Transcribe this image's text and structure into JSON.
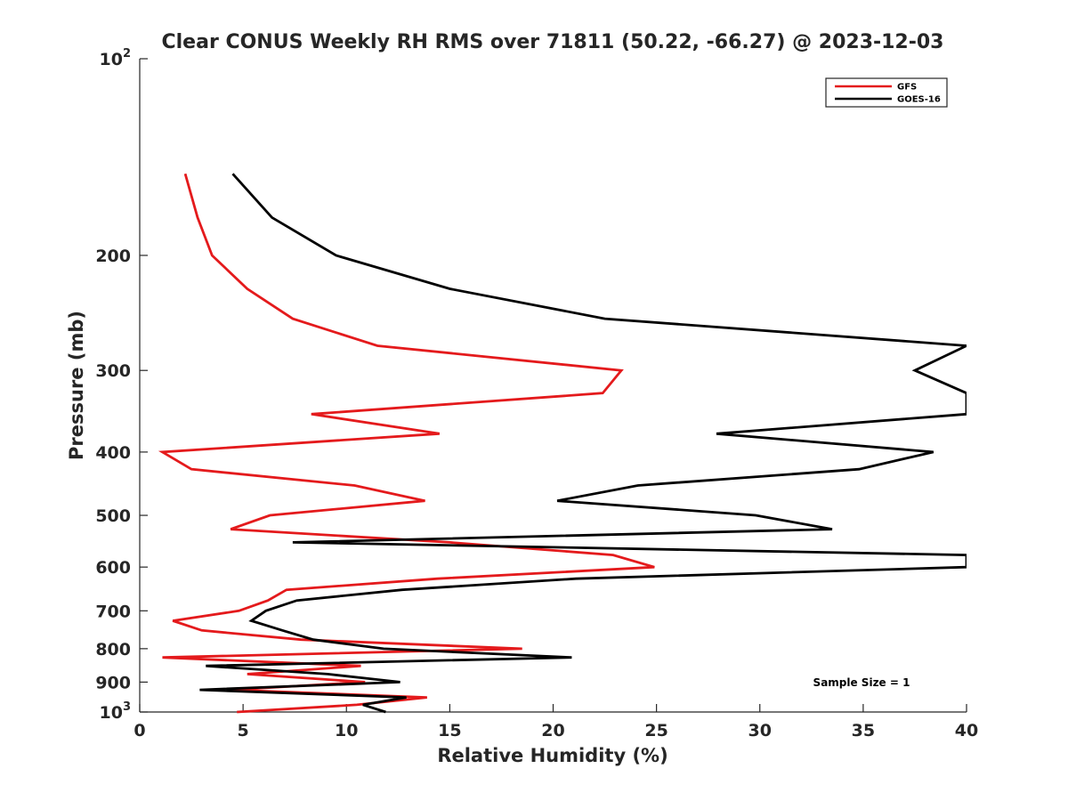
{
  "chart_data": {
    "type": "line",
    "title": "Clear CONUS Weekly RH RMS over 71811 (50.22, -66.27) @ 2023-12-03",
    "xlabel": "Relative Humidity (%)",
    "ylabel": "Pressure (mb)",
    "xlim": [
      0,
      40
    ],
    "ylim": [
      100,
      1000
    ],
    "y_scale": "log",
    "y_reversed": true,
    "x_ticks": [
      0,
      5,
      10,
      15,
      20,
      25,
      30,
      35,
      40
    ],
    "y_ticks": [
      {
        "value": 100,
        "label": "10",
        "sup": "2"
      },
      {
        "value": 200,
        "label": "200"
      },
      {
        "value": 300,
        "label": "300"
      },
      {
        "value": 400,
        "label": "400"
      },
      {
        "value": 500,
        "label": "500"
      },
      {
        "value": 600,
        "label": "600"
      },
      {
        "value": 700,
        "label": "700"
      },
      {
        "value": 800,
        "label": "800"
      },
      {
        "value": 900,
        "label": "900"
      },
      {
        "value": 1000,
        "label": "10",
        "sup": "3"
      }
    ],
    "legend_position": "top-right",
    "annotation": "Sample Size = 1",
    "series": [
      {
        "name": "GFS",
        "color": "#e41a1c",
        "points": [
          {
            "x": 2.2,
            "p": 150
          },
          {
            "x": 2.8,
            "p": 175
          },
          {
            "x": 3.5,
            "p": 200
          },
          {
            "x": 5.2,
            "p": 225
          },
          {
            "x": 7.4,
            "p": 250
          },
          {
            "x": 11.5,
            "p": 275
          },
          {
            "x": 23.3,
            "p": 300
          },
          {
            "x": 22.4,
            "p": 325
          },
          {
            "x": 8.3,
            "p": 350
          },
          {
            "x": 14.5,
            "p": 375
          },
          {
            "x": 1.1,
            "p": 400
          },
          {
            "x": 2.5,
            "p": 425
          },
          {
            "x": 10.4,
            "p": 450
          },
          {
            "x": 13.8,
            "p": 475
          },
          {
            "x": 6.3,
            "p": 500
          },
          {
            "x": 4.4,
            "p": 525
          },
          {
            "x": 15.0,
            "p": 550
          },
          {
            "x": 22.9,
            "p": 575
          },
          {
            "x": 24.9,
            "p": 600
          },
          {
            "x": 14.4,
            "p": 625
          },
          {
            "x": 7.1,
            "p": 650
          },
          {
            "x": 6.2,
            "p": 675
          },
          {
            "x": 4.8,
            "p": 700
          },
          {
            "x": 1.6,
            "p": 725
          },
          {
            "x": 3.0,
            "p": 750
          },
          {
            "x": 7.8,
            "p": 775
          },
          {
            "x": 18.5,
            "p": 800
          },
          {
            "x": 1.1,
            "p": 825
          },
          {
            "x": 10.7,
            "p": 850
          },
          {
            "x": 5.2,
            "p": 875
          },
          {
            "x": 10.9,
            "p": 900
          },
          {
            "x": 4.4,
            "p": 925
          },
          {
            "x": 13.9,
            "p": 950
          },
          {
            "x": 10.5,
            "p": 975
          },
          {
            "x": 4.7,
            "p": 1000
          }
        ]
      },
      {
        "name": "GOES-16",
        "color": "#000000",
        "points": [
          {
            "x": 4.5,
            "p": 150
          },
          {
            "x": 6.4,
            "p": 175
          },
          {
            "x": 9.5,
            "p": 200
          },
          {
            "x": 15.0,
            "p": 225
          },
          {
            "x": 22.5,
            "p": 250
          },
          {
            "x": 40.0,
            "p": 275
          },
          {
            "x": 37.5,
            "p": 300
          },
          {
            "x": 40.0,
            "p": 325
          },
          {
            "x": 40.0,
            "p": 350
          },
          {
            "x": 27.9,
            "p": 375
          },
          {
            "x": 38.4,
            "p": 400
          },
          {
            "x": 34.8,
            "p": 425
          },
          {
            "x": 24.1,
            "p": 450
          },
          {
            "x": 20.2,
            "p": 475
          },
          {
            "x": 29.8,
            "p": 500
          },
          {
            "x": 33.5,
            "p": 525
          },
          {
            "x": 7.4,
            "p": 550
          },
          {
            "x": 40.0,
            "p": 575
          },
          {
            "x": 40.0,
            "p": 600
          },
          {
            "x": 21.1,
            "p": 625
          },
          {
            "x": 12.7,
            "p": 650
          },
          {
            "x": 7.6,
            "p": 675
          },
          {
            "x": 6.1,
            "p": 700
          },
          {
            "x": 5.4,
            "p": 725
          },
          {
            "x": 6.9,
            "p": 750
          },
          {
            "x": 8.4,
            "p": 775
          },
          {
            "x": 11.8,
            "p": 800
          },
          {
            "x": 20.9,
            "p": 825
          },
          {
            "x": 3.2,
            "p": 850
          },
          {
            "x": 9.1,
            "p": 875
          },
          {
            "x": 12.6,
            "p": 900
          },
          {
            "x": 2.9,
            "p": 925
          },
          {
            "x": 12.9,
            "p": 950
          },
          {
            "x": 10.8,
            "p": 975
          },
          {
            "x": 11.9,
            "p": 1000
          }
        ]
      }
    ]
  }
}
